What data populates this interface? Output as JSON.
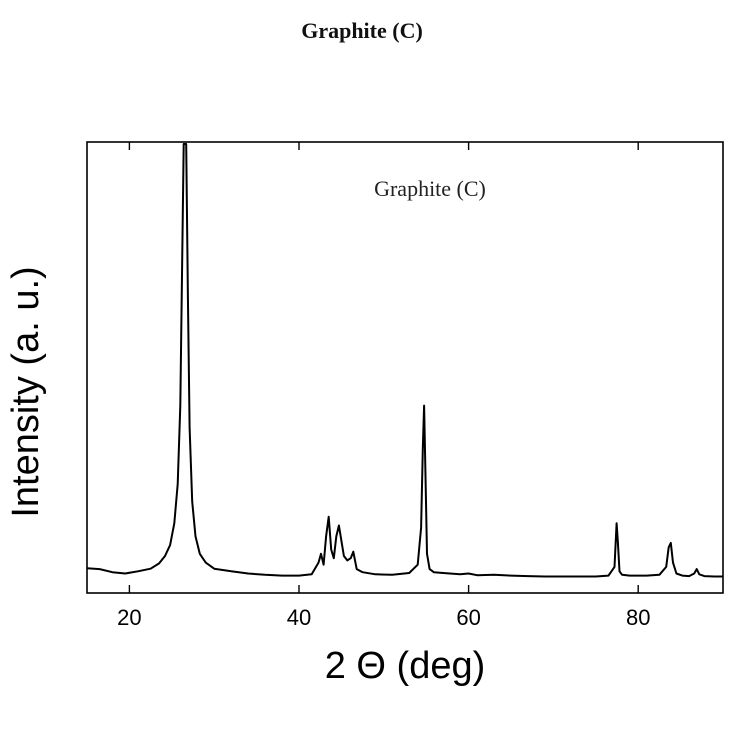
{
  "chart_data": {
    "type": "line",
    "title": "Graphite (C)",
    "annotation": "Graphite (C)",
    "xlabel": "2 Θ (deg)",
    "ylabel": "Intensity (a. u.)",
    "xlim": [
      15,
      90
    ],
    "ylim": [
      0,
      100
    ],
    "xticks": [
      20,
      40,
      60,
      80
    ],
    "yticks_labeled": false,
    "grid": false,
    "legend": "none",
    "line_color": "#000000",
    "series": [
      {
        "x": [
          15.0,
          16.5,
          18.0,
          19.5,
          21.0,
          22.5,
          23.5,
          24.2,
          24.8,
          25.3,
          25.7,
          26.0,
          26.2,
          26.4,
          26.55,
          26.7,
          26.9,
          27.1,
          27.4,
          27.8,
          28.3,
          29.0,
          30.0,
          32.0,
          34.0,
          36.0,
          38.0,
          40.0,
          41.5,
          42.3,
          42.6,
          42.9,
          43.2,
          43.5,
          43.8,
          44.1,
          44.4,
          44.7,
          45.0,
          45.3,
          45.7,
          46.1,
          46.4,
          46.8,
          47.5,
          49.0,
          51.0,
          53.0,
          54.0,
          54.4,
          54.6,
          54.75,
          54.9,
          55.1,
          55.4,
          55.9,
          57.0,
          59.0,
          60.0,
          61.0,
          63.0,
          65.0,
          67.0,
          69.0,
          71.0,
          73.0,
          75.0,
          76.5,
          77.2,
          77.45,
          77.6,
          77.8,
          78.1,
          79.0,
          81.0,
          82.5,
          83.3,
          83.6,
          83.85,
          84.1,
          84.5,
          85.2,
          86.0,
          86.6,
          86.9,
          87.2,
          87.8,
          89.0,
          90.0
        ],
        "y": [
          2.7,
          2.5,
          1.8,
          1.5,
          2.0,
          2.6,
          3.8,
          5.5,
          8.0,
          13.0,
          22.0,
          40.0,
          70.0,
          100.0,
          100.0,
          100.0,
          65.0,
          35.0,
          18.0,
          10.0,
          6.0,
          4.0,
          2.6,
          2.0,
          1.5,
          1.2,
          1.0,
          1.0,
          1.3,
          4.0,
          6.0,
          3.5,
          10.0,
          14.5,
          7.0,
          5.0,
          10.0,
          12.5,
          9.0,
          5.5,
          4.5,
          5.0,
          6.5,
          2.5,
          1.8,
          1.3,
          1.2,
          1.6,
          3.5,
          12.0,
          30.0,
          40.0,
          25.0,
          6.0,
          2.5,
          1.8,
          1.6,
          1.3,
          1.5,
          1.1,
          1.2,
          1.0,
          0.9,
          0.8,
          0.8,
          0.8,
          0.8,
          1.0,
          3.0,
          13.0,
          9.0,
          2.0,
          1.2,
          1.0,
          1.0,
          1.2,
          3.0,
          7.5,
          8.5,
          4.0,
          1.5,
          1.0,
          0.9,
          1.5,
          2.5,
          1.3,
          0.9,
          0.8,
          0.8
        ]
      }
    ]
  }
}
